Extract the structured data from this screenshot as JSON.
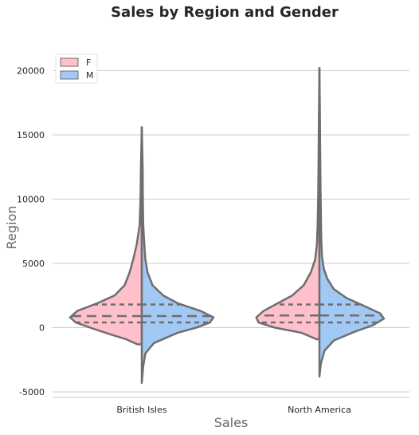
{
  "chart_data": {
    "type": "violin",
    "title": "Sales by Region and Gender",
    "xlabel": "Sales",
    "ylabel": "Region",
    "categories": [
      "British Isles",
      "North America"
    ],
    "ylim": [
      -5500,
      22000
    ],
    "yticks": [
      -5000,
      0,
      5000,
      10000,
      15000,
      20000
    ],
    "grid": "horizontal",
    "legend": {
      "placement": "top-left",
      "entries": [
        "F",
        "M"
      ]
    },
    "colors": {
      "F": "#ffc0cb",
      "M": "#a1c9f4",
      "edge": "#6e6e6e",
      "grid": "#cccccc"
    },
    "series": [
      {
        "name": "F",
        "violins": [
          {
            "category": "British Isles",
            "min": -1300,
            "max": 15600,
            "quartiles": [
              400,
              900,
              1800
            ],
            "profile": [
              [
                -1300,
                0.06
              ],
              [
                -900,
                0.22
              ],
              [
                -500,
                0.45
              ],
              [
                0,
                0.72
              ],
              [
                400,
                0.92
              ],
              [
                800,
                1.0
              ],
              [
                1300,
                0.9
              ],
              [
                1900,
                0.62
              ],
              [
                2500,
                0.38
              ],
              [
                3300,
                0.24
              ],
              [
                4300,
                0.17
              ],
              [
                5300,
                0.12
              ],
              [
                6500,
                0.07
              ],
              [
                8000,
                0.03
              ],
              [
                10000,
                0.018
              ],
              [
                12500,
                0.012
              ],
              [
                15600,
                0.0
              ]
            ]
          },
          {
            "category": "North America",
            "min": -900,
            "max": 20200,
            "quartiles": [
              400,
              950,
              1800
            ],
            "profile": [
              [
                -900,
                0.04
              ],
              [
                -400,
                0.25
              ],
              [
                0,
                0.62
              ],
              [
                400,
                0.85
              ],
              [
                800,
                0.88
              ],
              [
                1300,
                0.78
              ],
              [
                1900,
                0.58
              ],
              [
                2500,
                0.38
              ],
              [
                3300,
                0.22
              ],
              [
                4300,
                0.12
              ],
              [
                5300,
                0.06
              ],
              [
                6500,
                0.035
              ],
              [
                8000,
                0.025
              ],
              [
                10000,
                0.018
              ],
              [
                13000,
                0.012
              ],
              [
                16000,
                0.008
              ],
              [
                20200,
                0.0
              ]
            ]
          }
        ]
      },
      {
        "name": "M",
        "violins": [
          {
            "category": "British Isles",
            "min": -4300,
            "max": 15600,
            "quartiles": [
              400,
              900,
              1800
            ],
            "profile": [
              [
                -4300,
                0.0
              ],
              [
                -3000,
                0.02
              ],
              [
                -2000,
                0.05
              ],
              [
                -1200,
                0.17
              ],
              [
                -400,
                0.5
              ],
              [
                0,
                0.76
              ],
              [
                400,
                0.95
              ],
              [
                800,
                1.0
              ],
              [
                1300,
                0.82
              ],
              [
                1900,
                0.5
              ],
              [
                2500,
                0.3
              ],
              [
                3300,
                0.15
              ],
              [
                4300,
                0.08
              ],
              [
                5300,
                0.05
              ],
              [
                6500,
                0.035
              ],
              [
                8000,
                0.02
              ],
              [
                10000,
                0.015
              ],
              [
                12500,
                0.012
              ],
              [
                15600,
                0.0
              ]
            ]
          },
          {
            "category": "North America",
            "min": -3800,
            "max": 20200,
            "quartiles": [
              400,
              950,
              1800
            ],
            "profile": [
              [
                -3800,
                0.0
              ],
              [
                -2800,
                0.02
              ],
              [
                -1800,
                0.07
              ],
              [
                -1000,
                0.2
              ],
              [
                -300,
                0.5
              ],
              [
                200,
                0.75
              ],
              [
                700,
                0.9
              ],
              [
                1100,
                0.85
              ],
              [
                1700,
                0.62
              ],
              [
                2300,
                0.38
              ],
              [
                3000,
                0.2
              ],
              [
                3800,
                0.11
              ],
              [
                4600,
                0.06
              ],
              [
                5600,
                0.035
              ],
              [
                7000,
                0.025
              ],
              [
                9000,
                0.02
              ],
              [
                11000,
                0.015
              ],
              [
                14000,
                0.01
              ],
              [
                17000,
                0.006
              ],
              [
                20200,
                0.0
              ]
            ]
          }
        ]
      }
    ]
  }
}
